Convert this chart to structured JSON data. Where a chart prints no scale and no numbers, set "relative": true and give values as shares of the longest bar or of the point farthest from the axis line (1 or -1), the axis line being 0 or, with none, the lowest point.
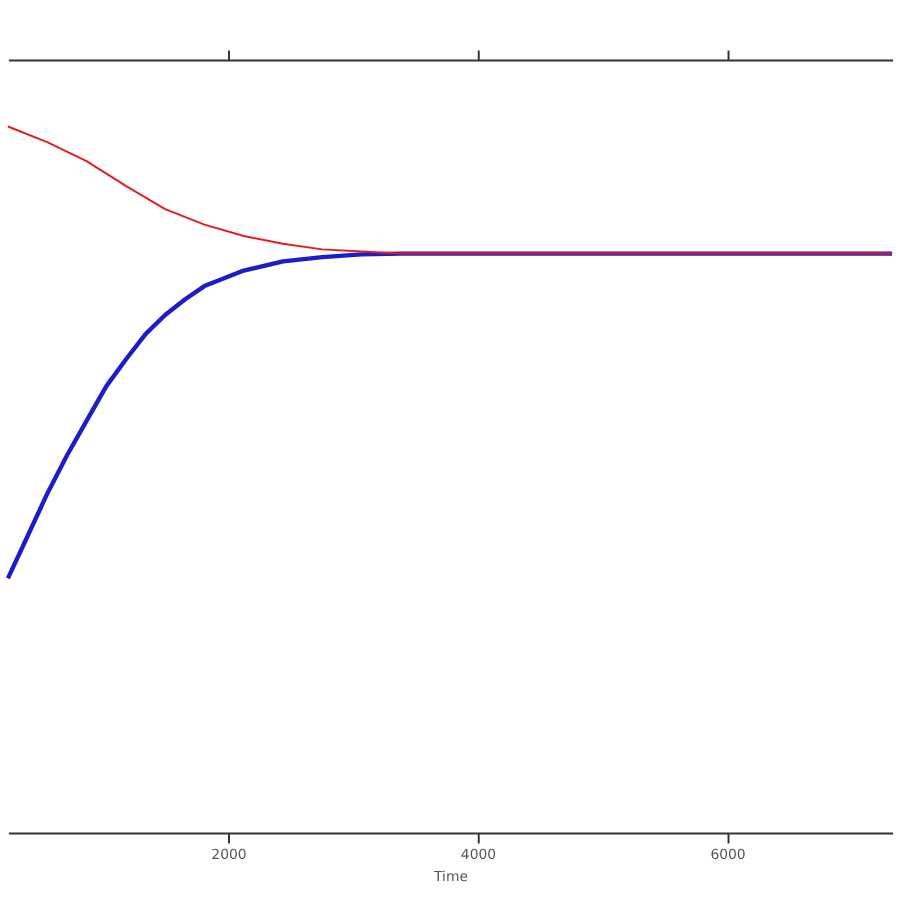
{
  "chart_data": {
    "type": "line",
    "xlabel": "Time",
    "relative": true,
    "xlim": [
      236,
      7323
    ],
    "xticks": [
      2000,
      4000,
      6000
    ],
    "grid": false,
    "legend": false,
    "line_style": "solid",
    "marker": "none",
    "series": [
      {
        "color": "#e0201c",
        "x": [
          236,
          551,
          866,
          1181,
          1496,
          1811,
          2126,
          2441,
          2756,
          3071,
          3386,
          7323
        ],
        "values": [
          1,
          0.978,
          0.951,
          0.916,
          0.883,
          0.861,
          0.845,
          0.834,
          0.826,
          0.823,
          0.82,
          0.82
        ]
      },
      {
        "color": "#1c1cc8",
        "x": [
          236,
          394,
          551,
          709,
          866,
          1024,
          1181,
          1339,
          1496,
          1654,
          1811,
          2126,
          2441,
          2756,
          3071,
          3386,
          7323
        ],
        "values": [
          0.36,
          0.42,
          0.48,
          0.534,
          0.583,
          0.632,
          0.67,
          0.706,
          0.733,
          0.755,
          0.774,
          0.796,
          0.809,
          0.815,
          0.819,
          0.82,
          0.82
        ]
      }
    ]
  }
}
